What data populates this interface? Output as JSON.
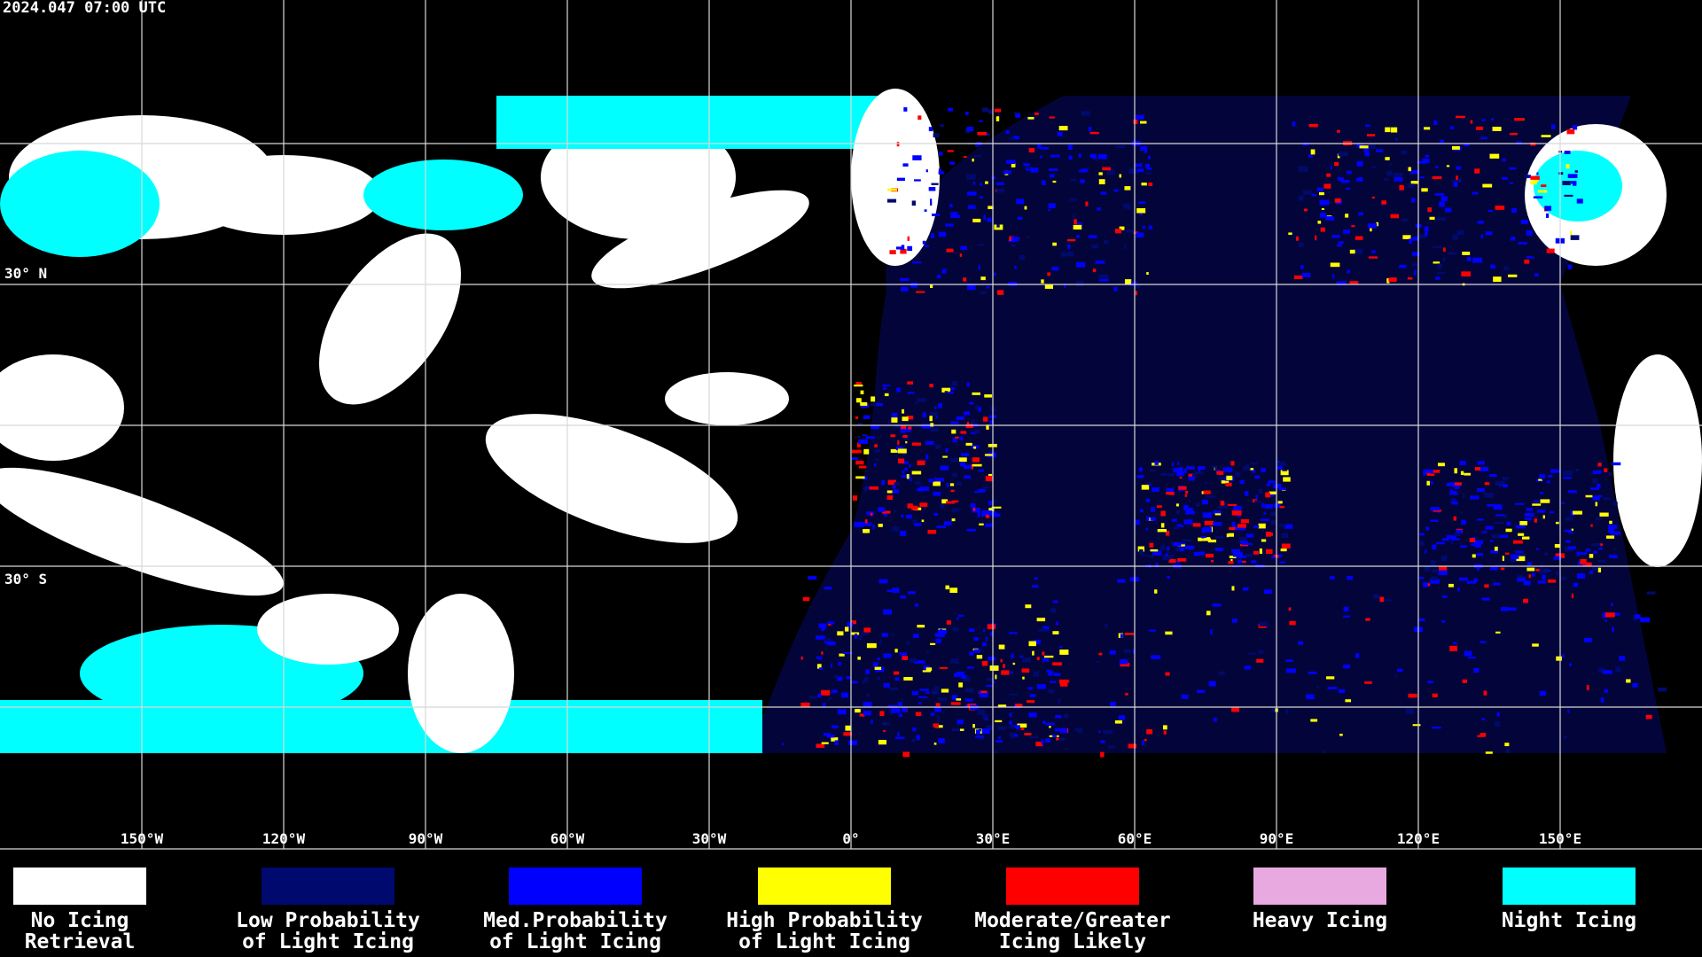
{
  "header": {
    "timestamp": "2024.047 07:00 UTC"
  },
  "map": {
    "lat_labels": [
      "30° N",
      "30° S"
    ],
    "lon_labels": [
      "150°W",
      "120°W",
      "90°W",
      "60°W",
      "30°W",
      "0°",
      "30°E",
      "60°E",
      "90°E",
      "120°E",
      "150°E"
    ]
  },
  "legend": {
    "items": [
      {
        "color": "#ffffff",
        "lines": [
          "No Icing",
          "Retrieval"
        ]
      },
      {
        "color": "#000a6e",
        "lines": [
          "Low Probability",
          "of Light Icing"
        ]
      },
      {
        "color": "#0000ff",
        "lines": [
          "Med.Probability",
          "of Light Icing"
        ]
      },
      {
        "color": "#ffff00",
        "lines": [
          "High Probability",
          "of Light Icing"
        ]
      },
      {
        "color": "#ff0000",
        "lines": [
          "Moderate/Greater",
          "Icing Likely"
        ]
      },
      {
        "color": "#e8a8e0",
        "lines": [
          "Heavy Icing"
        ]
      },
      {
        "color": "#00ffff",
        "lines": [
          "Night Icing"
        ]
      }
    ]
  }
}
